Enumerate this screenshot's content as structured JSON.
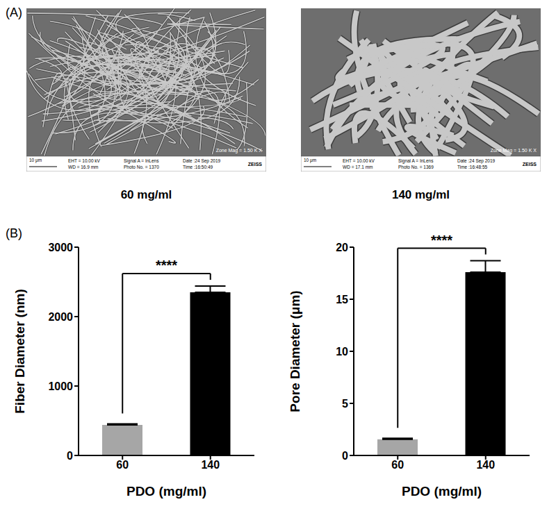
{
  "panel_labels": [
    "(A)",
    "(B)"
  ],
  "images": [
    {
      "caption": "60 mg/ml",
      "info": {
        "scale_bar": "10 μm",
        "left": [
          "EHT = 10.00 kV",
          "WD = 16.9 mm"
        ],
        "middle": [
          "Signal A = InLens",
          "Photo No. = 1370"
        ],
        "right": [
          "Date :24 Sep 2019",
          "Time :16:50:49"
        ],
        "brand": "ZEISS",
        "mag": "Zone Mag = 1.50 K X"
      }
    },
    {
      "caption": "140 mg/ml",
      "info": {
        "scale_bar": "10 μm",
        "left": [
          "EHT = 10.00 kV",
          "WD = 17.1 mm"
        ],
        "middle": [
          "Signal A = InLens",
          "Photo No. = 1369"
        ],
        "right": [
          "Date :24 Sep 2019",
          "Time :16:48:55"
        ],
        "brand": "ZEISS",
        "mag": "Zone Mag = 1.50 K X"
      }
    }
  ],
  "chart_data": [
    {
      "type": "bar",
      "categories": [
        "60",
        "140"
      ],
      "values": [
        440,
        2350
      ],
      "errors": [
        15,
        90
      ],
      "colors": [
        "#a6a6a6",
        "#000000"
      ],
      "x_label": "PDO (mg/ml)",
      "y_label": "Fiber Diameter (nm)",
      "ylim": [
        0,
        3000
      ],
      "yticks": [
        0,
        1000,
        2000,
        3000
      ],
      "significance": "****",
      "grid": false
    },
    {
      "type": "bar",
      "categories": [
        "60",
        "140"
      ],
      "values": [
        1.55,
        17.6
      ],
      "errors": [
        0.1,
        1.1
      ],
      "colors": [
        "#a6a6a6",
        "#000000"
      ],
      "x_label": "PDO (mg/ml)",
      "y_label": "Pore Diameter (μm)",
      "ylim": [
        0,
        20
      ],
      "yticks": [
        0,
        5,
        10,
        15,
        20
      ],
      "significance": "****",
      "grid": false
    }
  ]
}
